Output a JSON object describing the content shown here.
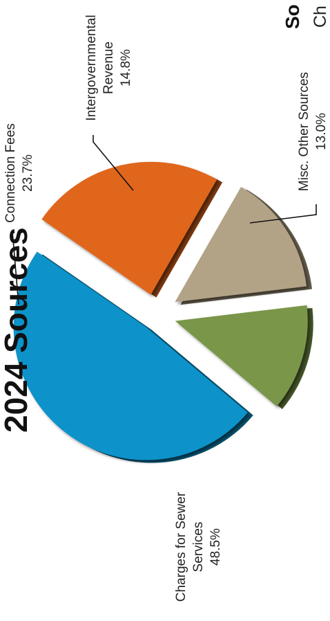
{
  "page": {
    "title": "2024 Sources",
    "side_title": "So",
    "side_subtitle": "Ch"
  },
  "chart_data": {
    "type": "pie",
    "exploded": true,
    "series": [
      {
        "label_lines": [
          "Charges for Sewer",
          "Services"
        ],
        "pct_text": "48.5%",
        "value": 48.5,
        "color": "#0b93c9"
      },
      {
        "label_lines": [
          "Connection Fees"
        ],
        "pct_text": "23.7%",
        "value": 23.7,
        "color": "#e0661d"
      },
      {
        "label_lines": [
          "Intergovernmental",
          "Revenue"
        ],
        "pct_text": "14.8%",
        "value": 14.8,
        "color": "#b3a386"
      },
      {
        "label_lines": [
          "Misc. Other Sources"
        ],
        "pct_text": "13.0%",
        "value": 13.0,
        "color": "#7a9648"
      }
    ]
  }
}
